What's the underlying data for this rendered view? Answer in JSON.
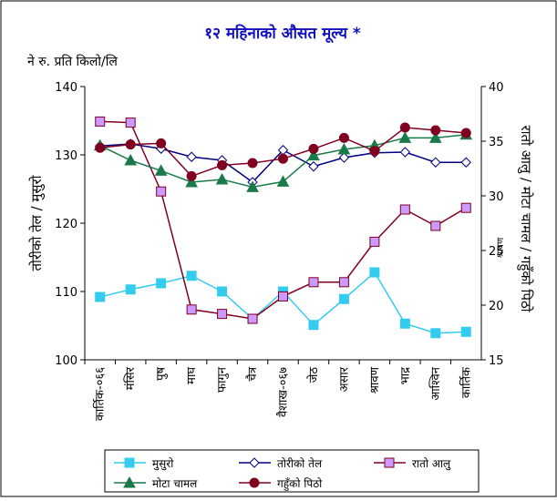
{
  "chart_data": {
    "type": "line",
    "title": "१२ महिनाको औसत मूल्य *",
    "subtitle": "ने रु. प्रति किलो/लि",
    "y_label": "तोरीको तेल / मुसुरो",
    "y2_label": "रातो आलु / मोटा चामल / गहुँको पिठो",
    "annotation": "श्रावण",
    "categories": [
      "कार्तिक-०६६",
      "मंसिर",
      "पुष",
      "माघ",
      "फागुन",
      "चैत्र",
      "वैशाख-०६७",
      "जेठ",
      "असार",
      "श्रावण",
      "भाद्र",
      "आश्विन",
      "कार्तिक"
    ],
    "ylim": [
      100,
      140
    ],
    "yticks": [
      100,
      110,
      120,
      130,
      140
    ],
    "y2lim": [
      15,
      40
    ],
    "y2ticks": [
      15,
      20,
      25,
      30,
      35,
      40
    ],
    "series": [
      {
        "name": "मुसुरो",
        "color": "#33ccee",
        "marker": "square",
        "marker_color": "#33ccee",
        "values": [
          109.2,
          110.3,
          111.2,
          112.3,
          110.0,
          106.0,
          110.0,
          105.1,
          108.9,
          112.8,
          105.3,
          103.9,
          104.1
        ]
      },
      {
        "name": "तोरीको तेल",
        "color": "#000080",
        "marker": "diamond",
        "marker_color": "#ffffff",
        "values": [
          131.3,
          131.6,
          130.9,
          129.7,
          129.2,
          126.0,
          130.7,
          128.3,
          129.6,
          130.3,
          130.4,
          128.9,
          128.9
        ]
      },
      {
        "name": "रातो आलु",
        "color": "#800020",
        "marker": "square",
        "marker_color": "#cc99ff",
        "axis": "y2",
        "values": [
          36.8,
          36.7,
          30.4,
          19.6,
          19.2,
          18.75,
          20.8,
          22.1,
          22.1,
          25.8,
          28.75,
          27.25,
          28.9
        ]
      },
      {
        "name": "मोटा चामल",
        "color": "#1a7a4a",
        "marker": "triangle",
        "marker_color": "#1a7a4a",
        "axis": "y2",
        "values": [
          34.6,
          33.25,
          32.3,
          31.25,
          31.5,
          30.8,
          31.3,
          33.7,
          34.25,
          34.6,
          35.3,
          35.3,
          35.6
        ]
      },
      {
        "name": "गहुँको पिठो",
        "color": "#800020",
        "marker": "circle",
        "marker_color": "#800020",
        "axis": "y2",
        "values": [
          34.4,
          34.7,
          34.8,
          31.8,
          32.8,
          33.0,
          33.4,
          34.3,
          35.3,
          34.1,
          36.25,
          36.0,
          35.75
        ]
      }
    ]
  }
}
